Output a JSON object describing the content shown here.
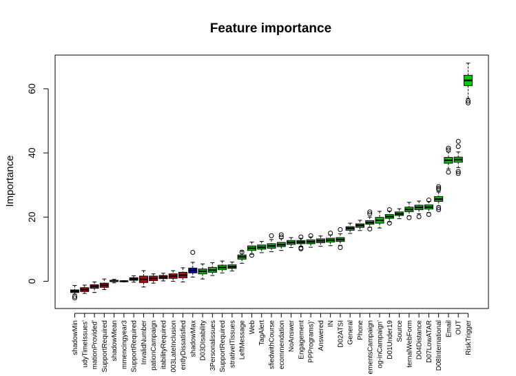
{
  "chart_data": {
    "type": "box",
    "title": "Feature importance",
    "xlabel": "",
    "ylabel": "Importance",
    "ylim": [
      -8.5,
      70.5
    ],
    "yticks": [
      0,
      20,
      40,
      60
    ],
    "colors": {
      "shadow": "#0000cd",
      "rejected": "#cd0000",
      "tentative": "#e6e600",
      "confirmed": "#00cd00",
      "black": "#000000"
    },
    "boxes": [
      {
        "label": "shadowMin",
        "median": -3.1,
        "q1": -3.5,
        "q3": -2.7,
        "wlo": -4.0,
        "whi": -1.3,
        "outliers": [
          -4.7,
          -5.2
        ],
        "color": "#000000"
      },
      {
        "label": "udyTimeIssues'",
        "median": -2.6,
        "q1": -3.2,
        "q3": -2.0,
        "wlo": -3.8,
        "whi": -1.2,
        "outliers": [],
        "color": "#cd0000"
      },
      {
        "label": "mationProvided'",
        "median": -1.6,
        "q1": -2.2,
        "q3": -1.1,
        "wlo": -3.5,
        "whi": -0.2,
        "outliers": [],
        "color": "#cd0000"
      },
      {
        "label": "SupportRequired",
        "median": -1.2,
        "q1": -1.9,
        "q3": -0.6,
        "wlo": -2.6,
        "whi": 0.7,
        "outliers": [],
        "color": "#cd0000"
      },
      {
        "label": "shadowMean",
        "median": 0.1,
        "q1": -0.1,
        "q3": 0.3,
        "wlo": -0.5,
        "whi": 0.6,
        "outliers": [],
        "color": "#000000"
      },
      {
        "label": "mmencingyear3",
        "median": 0.0,
        "q1": -0.1,
        "q3": 0.1,
        "wlo": -0.2,
        "whi": 0.2,
        "outliers": [],
        "color": "#000000"
      },
      {
        "label": "SupportRequired",
        "median": 0.7,
        "q1": 0.3,
        "q3": 1.1,
        "wlo": -0.3,
        "whi": 1.7,
        "outliers": [],
        "color": "#cd0000"
      },
      {
        "label": "InvalidNumber",
        "median": 0.6,
        "q1": -0.4,
        "q3": 1.6,
        "wlo": -1.8,
        "whi": 3.3,
        "outliers": [],
        "color": "#cd0000"
      },
      {
        "label": "pationCampaign",
        "median": 0.9,
        "q1": 0.2,
        "q3": 1.6,
        "wlo": -0.6,
        "whi": 2.3,
        "outliers": [],
        "color": "#cd0000"
      },
      {
        "label": "itabilityRequired",
        "median": 1.3,
        "q1": 0.8,
        "q3": 1.8,
        "wlo": 0.1,
        "whi": 2.5,
        "outliers": [],
        "color": "#cd0000"
      },
      {
        "label": "003LateInclusion",
        "median": 1.6,
        "q1": 0.9,
        "q3": 2.3,
        "wlo": 0.0,
        "whi": 3.3,
        "outliers": [],
        "color": "#cd0000"
      },
      {
        "label": "entlyDissatisfied",
        "median": 1.9,
        "q1": 1.1,
        "q3": 2.8,
        "wlo": -0.2,
        "whi": 4.2,
        "outliers": [],
        "color": "#cd0000"
      },
      {
        "label": "shadowMax",
        "median": 3.4,
        "q1": 2.6,
        "q3": 4.1,
        "wlo": 1.3,
        "whi": 5.9,
        "outliers": [
          9.0
        ],
        "color": "#0000cd"
      },
      {
        "label": "D03DIsability",
        "median": 3.1,
        "q1": 2.3,
        "q3": 3.8,
        "wlo": 0.7,
        "whi": 5.4,
        "outliers": [],
        "color": "#00cd00"
      },
      {
        "label": "3Personalissues",
        "median": 3.5,
        "q1": 2.8,
        "q3": 4.3,
        "wlo": 1.8,
        "whi": 5.8,
        "outliers": [],
        "color": "#00cd00"
      },
      {
        "label": "SupportRequired",
        "median": 4.3,
        "q1": 3.6,
        "q3": 5.0,
        "wlo": 2.6,
        "whi": 6.3,
        "outliers": [],
        "color": "#00cd00"
      },
      {
        "label": "strativeITissues",
        "median": 4.5,
        "q1": 4.0,
        "q3": 5.1,
        "wlo": 3.2,
        "whi": 6.0,
        "outliers": [],
        "color": "#00cd00"
      },
      {
        "label": "LeftMessage",
        "median": 7.6,
        "q1": 6.9,
        "q3": 8.2,
        "wlo": 5.6,
        "whi": 9.4,
        "outliers": [
          9.1
        ],
        "color": "#00cd00"
      },
      {
        "label": "Web",
        "median": 10.3,
        "q1": 9.6,
        "q3": 11.0,
        "wlo": 8.4,
        "whi": 12.2,
        "outliers": [
          8.1
        ],
        "color": "#00cd00"
      },
      {
        "label": "TagAlert",
        "median": 10.6,
        "q1": 10.0,
        "q3": 11.3,
        "wlo": 8.9,
        "whi": 12.4,
        "outliers": [],
        "color": "#00cd00"
      },
      {
        "label": "sfiedwithCourse",
        "median": 11.0,
        "q1": 10.3,
        "q3": 11.7,
        "wlo": 9.2,
        "whi": 13.0,
        "outliers": [
          14.2
        ],
        "color": "#00cd00"
      },
      {
        "label": "ecommendation",
        "median": 11.4,
        "q1": 10.8,
        "q3": 12.1,
        "wlo": 9.6,
        "whi": 13.3,
        "outliers": [
          13.8,
          14.5
        ],
        "color": "#00cd00"
      },
      {
        "label": "NoAnswer",
        "median": 12.1,
        "q1": 11.5,
        "q3": 12.7,
        "wlo": 10.5,
        "whi": 13.6,
        "outliers": [],
        "color": "#00cd00"
      },
      {
        "label": "Engagement",
        "median": 12.2,
        "q1": 11.7,
        "q3": 12.7,
        "wlo": 10.9,
        "whi": 13.4,
        "outliers": [
          10.4,
          10.1,
          13.8
        ],
        "color": "#00cd00"
      },
      {
        "label": "PPPrograms)'",
        "median": 12.3,
        "q1": 11.7,
        "q3": 12.9,
        "wlo": 10.6,
        "whi": 13.8,
        "outliers": [
          14.2
        ],
        "color": "#00cd00"
      },
      {
        "label": "Answered",
        "median": 12.6,
        "q1": 12.0,
        "q3": 13.2,
        "wlo": 10.9,
        "whi": 14.1,
        "outliers": [],
        "color": "#00cd00"
      },
      {
        "label": "IN",
        "median": 12.8,
        "q1": 12.2,
        "q3": 13.4,
        "wlo": 11.1,
        "whi": 14.4,
        "outliers": [
          15.0
        ],
        "color": "#00cd00"
      },
      {
        "label": "D02ATSI",
        "median": 13.0,
        "q1": 12.4,
        "q3": 13.6,
        "wlo": 11.2,
        "whi": 14.8,
        "outliers": [
          10.5,
          16.1
        ],
        "color": "#00cd00"
      },
      {
        "label": "General",
        "median": 16.5,
        "q1": 15.9,
        "q3": 17.0,
        "wlo": 14.9,
        "whi": 18.1,
        "outliers": [],
        "color": "#00cd00"
      },
      {
        "label": "Phone",
        "median": 17.4,
        "q1": 16.8,
        "q3": 17.9,
        "wlo": 15.8,
        "whi": 19.0,
        "outliers": [],
        "color": "#00cd00"
      },
      {
        "label": "ementsCampaign",
        "median": 18.3,
        "q1": 17.8,
        "q3": 18.9,
        "wlo": 16.8,
        "whi": 20.0,
        "outliers": [
          16.3,
          21.0,
          21.6
        ],
        "color": "#00cd00"
      },
      {
        "label": "og-inCampaign'",
        "median": 19.0,
        "q1": 18.1,
        "q3": 19.9,
        "wlo": 16.6,
        "whi": 21.8,
        "outliers": [],
        "color": "#00cd00"
      },
      {
        "label": "D01Under19",
        "median": 20.2,
        "q1": 19.6,
        "q3": 20.8,
        "wlo": 18.5,
        "whi": 21.9,
        "outliers": [
          18.1,
          22.3
        ],
        "color": "#00cd00"
      },
      {
        "label": "Source",
        "median": 21.0,
        "q1": 20.5,
        "q3": 21.6,
        "wlo": 19.5,
        "whi": 22.6,
        "outliers": [],
        "color": "#00cd00"
      },
      {
        "label": "ternalWebForm",
        "median": 22.4,
        "q1": 21.7,
        "q3": 23.1,
        "wlo": 20.4,
        "whi": 24.6,
        "outliers": [
          19.8
        ],
        "color": "#00cd00"
      },
      {
        "label": "D04Distance",
        "median": 23.0,
        "q1": 22.3,
        "q3": 23.7,
        "wlo": 21.0,
        "whi": 25.0,
        "outliers": [
          20.1
        ],
        "color": "#00cd00"
      },
      {
        "label": "D07LowATAR",
        "median": 23.1,
        "q1": 22.5,
        "q3": 23.8,
        "wlo": 21.4,
        "whi": 24.9,
        "outliers": [
          20.8,
          25.3
        ],
        "color": "#00cd00"
      },
      {
        "label": "D08International",
        "median": 25.6,
        "q1": 24.9,
        "q3": 26.4,
        "wlo": 23.5,
        "whi": 27.8,
        "outliers": [
          22.3,
          22.9,
          28.6,
          29.0,
          29.5
        ],
        "color": "#00cd00"
      },
      {
        "label": "Email",
        "median": 37.7,
        "q1": 36.8,
        "q3": 38.6,
        "wlo": 35.0,
        "whi": 40.3,
        "outliers": [
          34.0,
          40.9,
          41.5
        ],
        "color": "#00cd00"
      },
      {
        "label": "OUT",
        "median": 37.9,
        "q1": 37.1,
        "q3": 38.7,
        "wlo": 35.4,
        "whi": 40.3,
        "outliers": [
          33.6,
          34.2,
          42.0,
          43.6
        ],
        "color": "#00cd00"
      },
      {
        "label": "RiskTrigger",
        "median": 62.6,
        "q1": 61.0,
        "q3": 64.2,
        "wlo": 57.0,
        "whi": 68.0,
        "outliers": [
          55.6,
          56.2
        ],
        "color": "#00cd00"
      }
    ]
  }
}
